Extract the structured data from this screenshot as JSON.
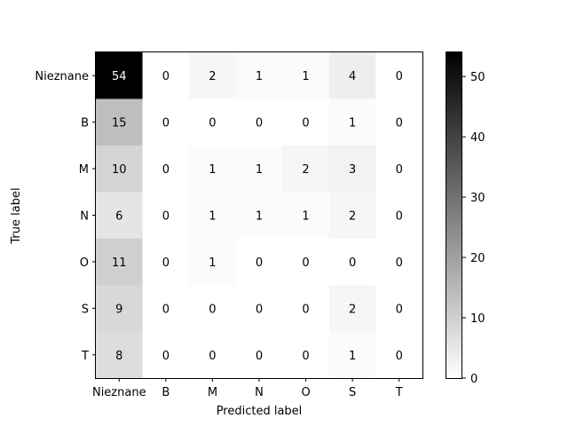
{
  "chart_data": {
    "type": "heatmap",
    "title": "",
    "xlabel": "Predicted label",
    "ylabel": "True label",
    "x_categories": [
      "Nieznane",
      "B",
      "M",
      "N",
      "O",
      "S",
      "T"
    ],
    "y_categories": [
      "Nieznane",
      "B",
      "M",
      "N",
      "O",
      "S",
      "T"
    ],
    "values": [
      [
        54,
        0,
        2,
        1,
        1,
        4,
        0
      ],
      [
        15,
        0,
        0,
        0,
        0,
        1,
        0
      ],
      [
        10,
        0,
        1,
        1,
        2,
        3,
        0
      ],
      [
        6,
        0,
        1,
        1,
        1,
        2,
        0
      ],
      [
        11,
        0,
        1,
        0,
        0,
        0,
        0
      ],
      [
        9,
        0,
        0,
        0,
        0,
        2,
        0
      ],
      [
        8,
        0,
        0,
        0,
        0,
        1,
        0
      ]
    ],
    "colormap": "Greys",
    "colorbar": {
      "range": [
        0,
        54
      ],
      "ticks": [
        0,
        10,
        20,
        30,
        40,
        50
      ]
    },
    "grid": false,
    "colors": {
      "low": "#ffffff",
      "high": "#000000",
      "text_dark": "#000000",
      "text_light": "#ffffff"
    }
  }
}
